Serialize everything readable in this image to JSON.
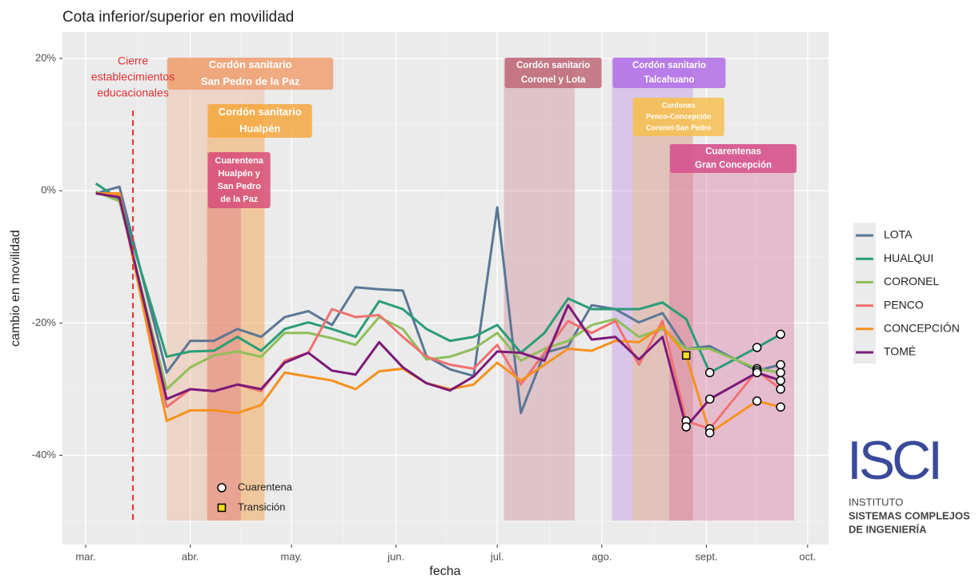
{
  "chart_data": {
    "type": "line",
    "title": "Cota inferior/superior en movilidad",
    "xlabel": "fecha",
    "ylabel": "cambio en movilidad",
    "xlim": [
      -6.9,
      220.2
    ],
    "xticks": [
      {
        "value": 0,
        "label": "mar."
      },
      {
        "value": 31,
        "label": "abr."
      },
      {
        "value": 61,
        "label": "may."
      },
      {
        "value": 92,
        "label": "jun."
      },
      {
        "value": 122,
        "label": "jul."
      },
      {
        "value": 153,
        "label": "ago."
      },
      {
        "value": 184,
        "label": "sept."
      },
      {
        "value": 214,
        "label": "oct."
      }
    ],
    "xticks_minor": [
      15.5,
      46,
      76.5,
      107,
      137.5,
      168.5,
      199
    ],
    "ylim": [
      -53.5,
      24
    ],
    "yticks": [
      {
        "value": 20,
        "label": "20%"
      },
      {
        "value": 0,
        "label": "0%"
      },
      {
        "value": -20,
        "label": "-20%"
      },
      {
        "value": -40,
        "label": "-40%"
      }
    ],
    "yticks_minor": [
      10,
      -10,
      -30,
      -50
    ],
    "grid": true,
    "x": [
      3,
      10,
      24,
      31,
      38,
      45,
      52,
      59,
      66,
      73,
      80,
      87,
      94,
      101,
      108,
      115,
      122,
      129,
      136,
      143,
      150,
      157,
      164,
      171,
      178,
      185,
      199,
      206
    ],
    "series": [
      {
        "name": "LOTA",
        "color": "#5b7796",
        "values": [
          -0.4,
          0.6,
          -27.5,
          -22.7,
          -22.7,
          -20.9,
          -22.1,
          -19.1,
          -18.2,
          -20.3,
          -14.6,
          -14.9,
          -15.1,
          -25,
          -27,
          -28,
          -2.5,
          -33.6,
          -24.5,
          -23.5,
          -17.3,
          -17.9,
          -19.9,
          -18.5,
          -23.9,
          -23.5,
          -27.2,
          -26.3
        ],
        "status": [
          null,
          null,
          null,
          null,
          null,
          null,
          null,
          null,
          null,
          null,
          null,
          null,
          null,
          null,
          null,
          null,
          null,
          null,
          null,
          null,
          null,
          null,
          null,
          null,
          null,
          null,
          "Cuarentena",
          "Cuarentena"
        ]
      },
      {
        "name": "HUALQUI",
        "color": "#2a9d78",
        "values": [
          1.1,
          -1.3,
          -25.1,
          -24.3,
          -24.2,
          -22.1,
          -24.2,
          -20.9,
          -19.9,
          -20.9,
          -22.1,
          -16.7,
          -17.9,
          -20.9,
          -22.7,
          -22.1,
          -20.3,
          -24.5,
          -21.5,
          -16.3,
          -17.9,
          -17.9,
          -17.9,
          -16.9,
          -19.4,
          -27.5,
          -23.7,
          -21.7
        ],
        "status": [
          null,
          null,
          null,
          null,
          null,
          null,
          null,
          null,
          null,
          null,
          null,
          null,
          null,
          null,
          null,
          null,
          null,
          null,
          null,
          null,
          null,
          null,
          null,
          null,
          null,
          "Cuarentena",
          "Cuarentena",
          "Cuarentena"
        ]
      },
      {
        "name": "CORONEL",
        "color": "#8fbf5a",
        "values": [
          -0.1,
          -1.6,
          -30,
          -26.7,
          -24.9,
          -24.3,
          -25.1,
          -21.5,
          -21.5,
          -22.3,
          -23.3,
          -19.1,
          -20.9,
          -25.5,
          -25.1,
          -23.9,
          -21.5,
          -25.7,
          -23.9,
          -22.7,
          -20.3,
          -19.4,
          -22.1,
          -20.9,
          -23.9,
          -23.9,
          -26.9,
          -27.5
        ],
        "status": [
          null,
          null,
          null,
          null,
          null,
          null,
          null,
          null,
          null,
          null,
          null,
          null,
          null,
          null,
          null,
          null,
          null,
          null,
          null,
          null,
          null,
          null,
          null,
          null,
          null,
          null,
          "Cuarentena",
          "Cuarentena"
        ]
      },
      {
        "name": "PENCO",
        "color": "#f07272",
        "values": [
          -0.4,
          -0.7,
          -32.7,
          -30,
          -30.3,
          -29.3,
          -30.3,
          -25.7,
          -24.5,
          -17.9,
          -19.1,
          -18.8,
          -22.1,
          -25.1,
          -26.3,
          -26.9,
          -23.3,
          -29.3,
          -24.5,
          -19.7,
          -21.5,
          -19.7,
          -26.3,
          -19.7,
          -34.8,
          -36,
          -27.2,
          -30
        ],
        "status": [
          null,
          null,
          null,
          null,
          null,
          null,
          null,
          null,
          null,
          null,
          null,
          null,
          null,
          null,
          null,
          null,
          null,
          null,
          null,
          null,
          null,
          null,
          null,
          null,
          "Cuarentena",
          "Cuarentena",
          "Cuarentena",
          "Cuarentena"
        ]
      },
      {
        "name": "CONCEPCIÓN",
        "color": "#f5921e",
        "values": [
          -0.4,
          -0.4,
          -34.8,
          -33.2,
          -33.2,
          -33.6,
          -32.4,
          -27.5,
          -28.1,
          -28.7,
          -30,
          -27.3,
          -26.9,
          -29.1,
          -30,
          -29.3,
          -26,
          -28.7,
          -26.3,
          -23.9,
          -24.2,
          -22.7,
          -22.9,
          -20.5,
          -24.9,
          -36.6,
          -31.8,
          -32.7
        ],
        "status": [
          null,
          null,
          null,
          null,
          null,
          null,
          null,
          null,
          null,
          null,
          null,
          null,
          null,
          null,
          null,
          null,
          null,
          null,
          null,
          null,
          null,
          null,
          null,
          null,
          "Transición",
          "Cuarentena",
          "Cuarentena",
          "Cuarentena"
        ]
      },
      {
        "name": "TOMÉ",
        "color": "#7b1a78",
        "values": [
          -0.4,
          -1,
          -31.5,
          -30,
          -30.3,
          -29.3,
          -30,
          -26,
          -24.5,
          -27.2,
          -27.8,
          -22.9,
          -26.7,
          -29.1,
          -30.2,
          -28.1,
          -24.3,
          -24.5,
          -25.7,
          -17.3,
          -22.5,
          -22.1,
          -25.5,
          -22.1,
          -35.7,
          -31.5,
          -27.5,
          -28.7
        ],
        "status": [
          null,
          null,
          null,
          null,
          null,
          null,
          null,
          null,
          null,
          null,
          null,
          null,
          null,
          null,
          null,
          null,
          null,
          null,
          null,
          null,
          null,
          null,
          null,
          null,
          "Cuarentena",
          "Cuarentena",
          "Cuarentena",
          "Cuarentena"
        ]
      }
    ],
    "marker_legend": [
      "Cuarentena",
      "Transición"
    ],
    "event": {
      "x": 14,
      "label": [
        "Cierre",
        "establecimientos",
        "educacionales"
      ],
      "color": "#e03030"
    },
    "periods": [
      {
        "label": [
          "Cordón sanitario",
          "San Pedro de la Paz"
        ],
        "start": 24,
        "end": 53,
        "color": "#f0a070"
      },
      {
        "label": [
          "Cordón sanitario",
          "Hualpén"
        ],
        "start": 36,
        "end": 53,
        "color": "#f5a840"
      },
      {
        "label": [
          "Cuarentena",
          "Hualpén y",
          "San Pedro",
          "de la Paz"
        ],
        "start": 36,
        "end": 46,
        "color": "#d84f7a"
      },
      {
        "label": [
          "Cordón sanitario",
          "Coronel y Lota"
        ],
        "start": 124,
        "end": 145,
        "color": "#c06878"
      },
      {
        "label": [
          "Cordón sanitario",
          "Talcahuano"
        ],
        "start": 156,
        "end": 180,
        "color": "#b06ee6"
      },
      {
        "label": [
          "Cordones",
          "Penco-Concepción",
          "Coronel-San Pedro"
        ],
        "start": 162,
        "end": 180,
        "color": "#f6c050"
      },
      {
        "label": [
          "Cuarentenas",
          "Gran Concepción"
        ],
        "start": 173,
        "end": 210,
        "color": "#d6508a"
      }
    ]
  },
  "logo": {
    "name": "ISCI",
    "line1": "INSTITUTO",
    "line2": "SISTEMAS COMPLEJOS",
    "line3": "DE INGENIERÍA"
  }
}
